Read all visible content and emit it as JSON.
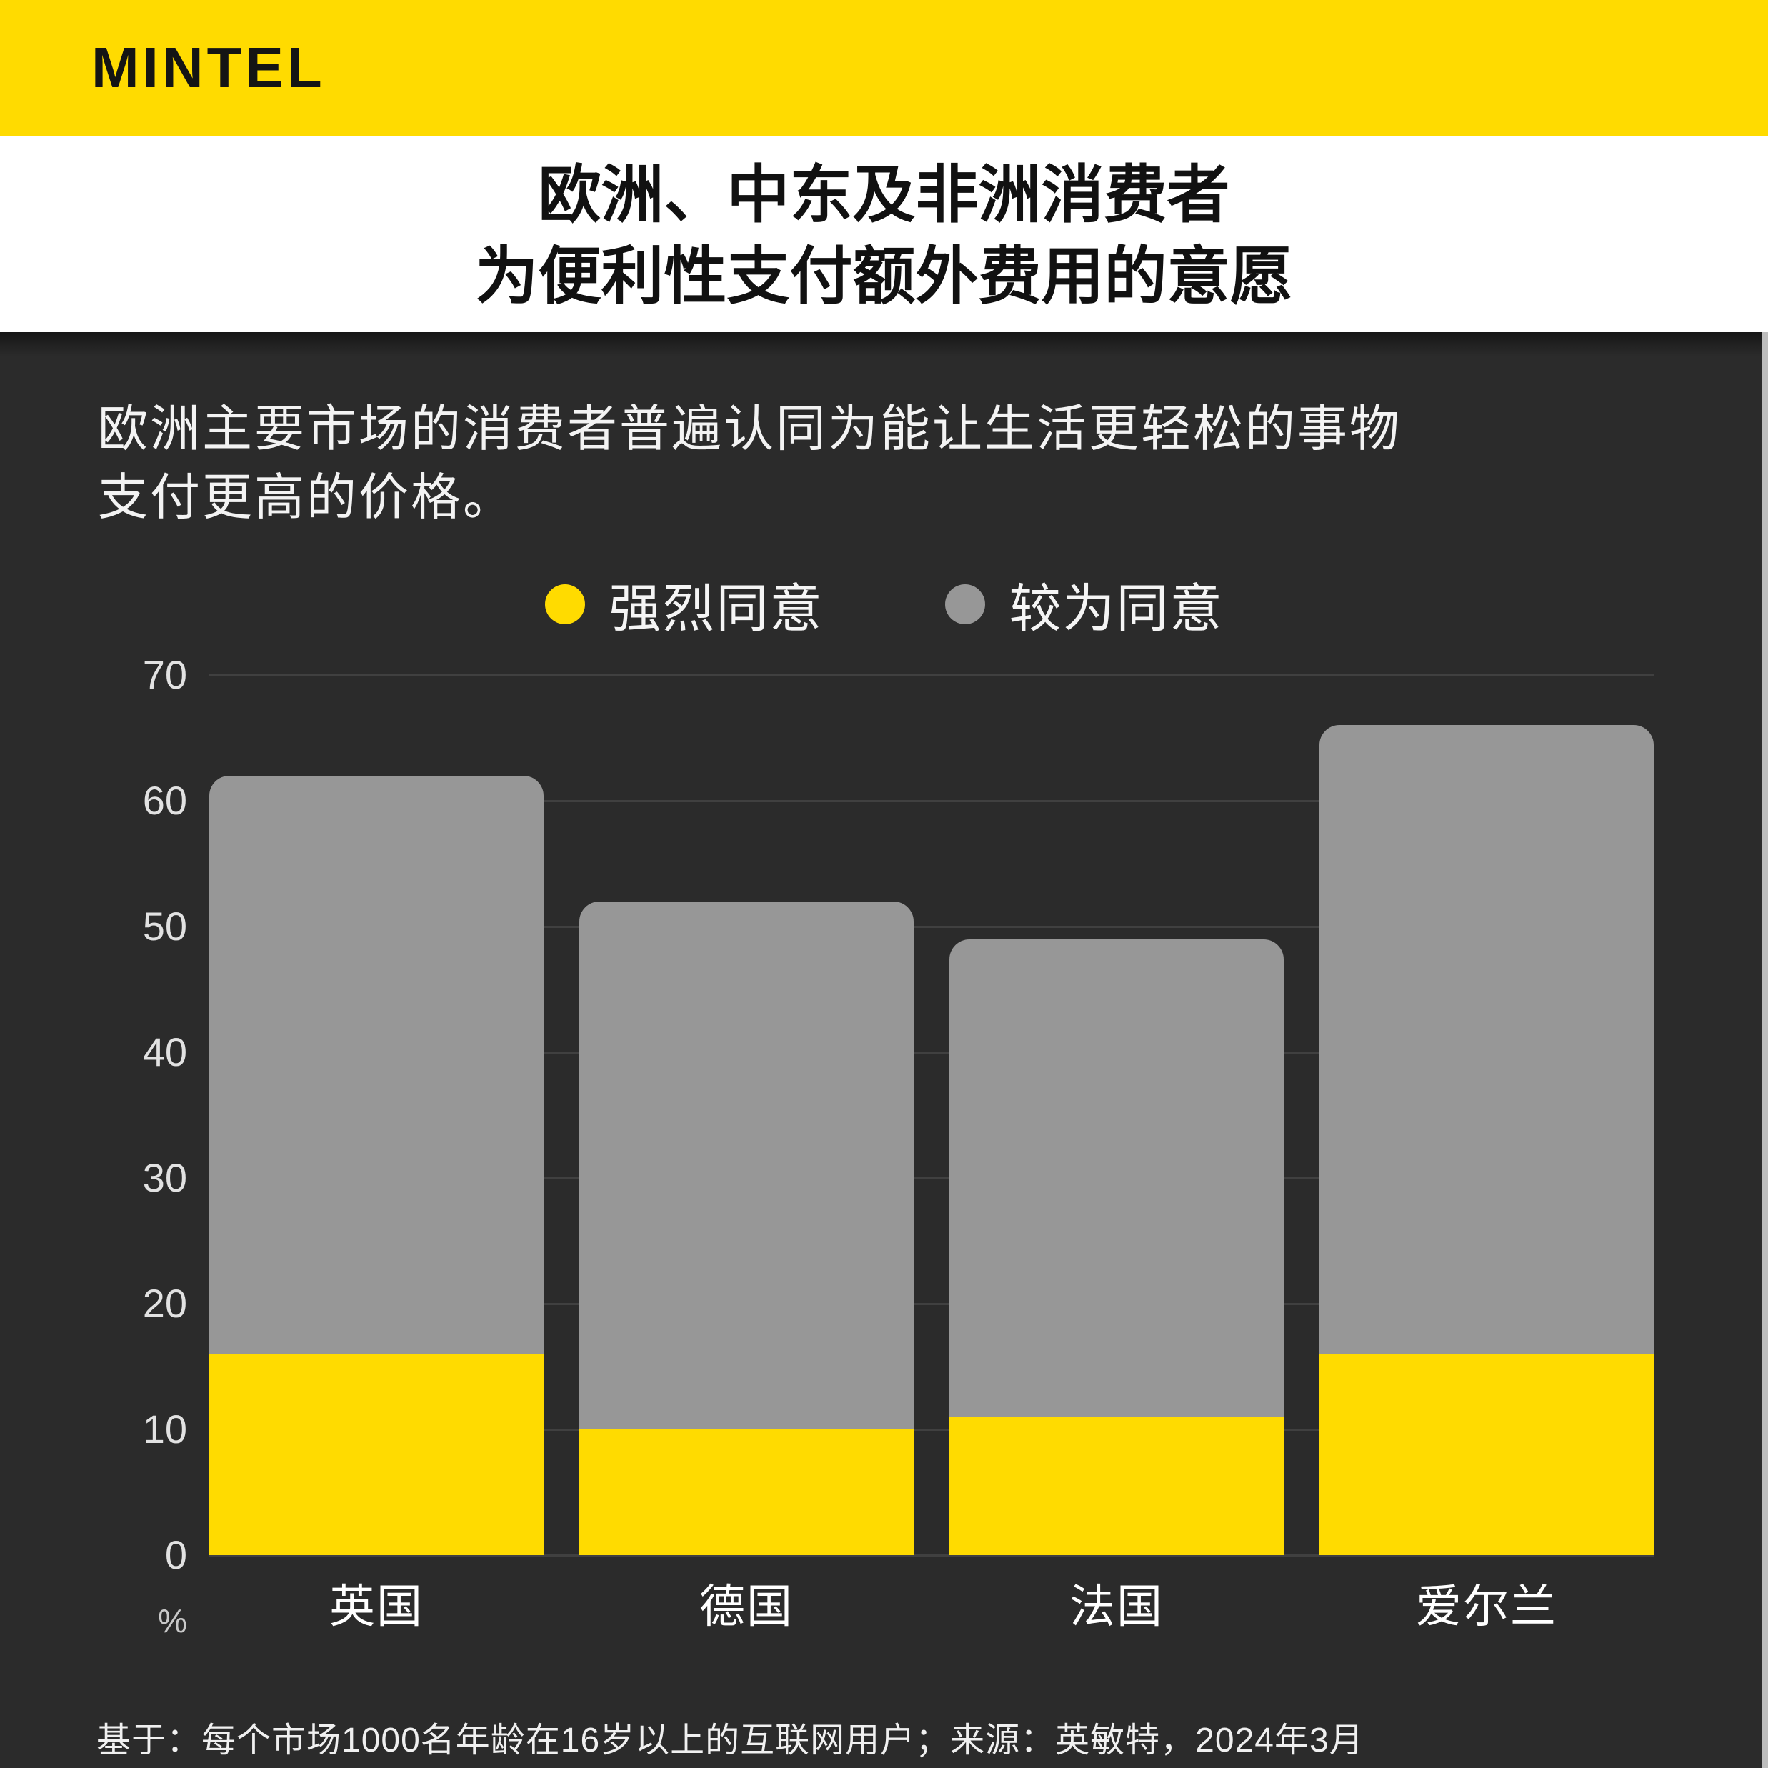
{
  "brand": {
    "logo": "MINTEL"
  },
  "header": {
    "title_line1": "欧洲、中东及非洲消费者",
    "title_line2": "为便利性支付额外费用的意愿"
  },
  "subtitle": {
    "line1": "欧洲主要市场的消费者普遍认同为能让生活更轻松的事物",
    "line2": "支付更高的价格。"
  },
  "legend": [
    {
      "label": "强烈同意",
      "color": "#FFDB00"
    },
    {
      "label": "较为同意",
      "color": "#979797"
    }
  ],
  "footnote": "基于：每个市场1000名年龄在16岁以上的互联网用户；来源：英敏特，2024年3月",
  "colors": {
    "banner_yellow": "#FFDB00",
    "strongly_agree_yellow": "#FFDB00",
    "somewhat_agree_gray": "#979797",
    "panel_background": "#2B2B2B",
    "gridline": "#404040",
    "title_text": "#111111",
    "light_text": "#F3F3F3"
  },
  "chart_data": {
    "type": "bar",
    "stacked": true,
    "categories": [
      "英国",
      "德国",
      "法国",
      "爱尔兰"
    ],
    "series": [
      {
        "name": "强烈同意",
        "color": "#FFDB00",
        "values": [
          16,
          10,
          11,
          16
        ]
      },
      {
        "name": "较为同意",
        "color": "#979797",
        "values": [
          46,
          42,
          38,
          50
        ]
      }
    ],
    "totals": [
      62,
      52,
      49,
      66
    ],
    "ylabel": "%",
    "ylim": [
      0,
      70
    ],
    "yticks": [
      0,
      10,
      20,
      30,
      40,
      50,
      60,
      70
    ],
    "grid": "horizontal",
    "legend_position": "top"
  }
}
